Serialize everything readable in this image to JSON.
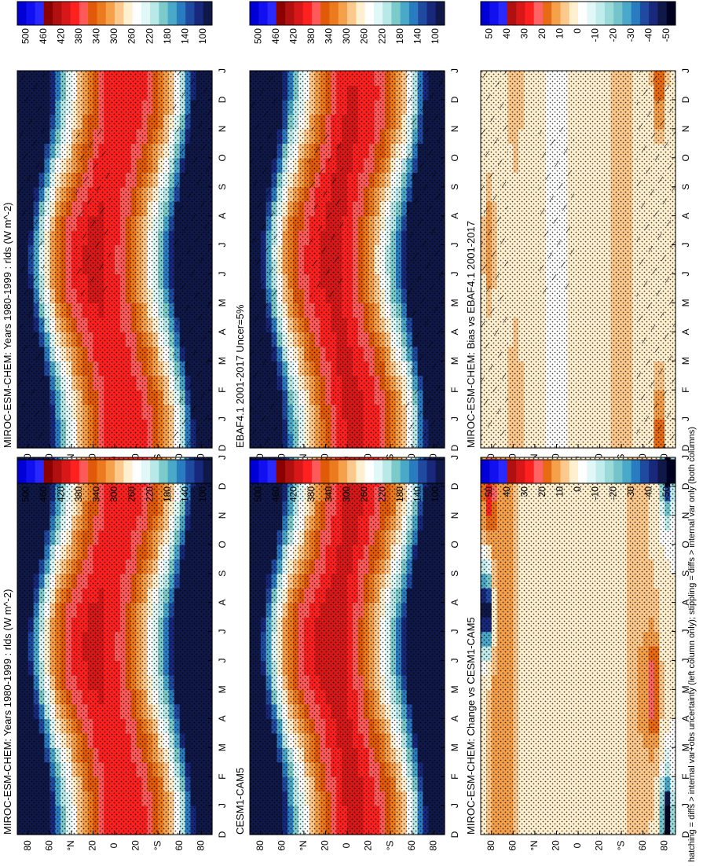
{
  "chart_data": [
    {
      "type": "heatmap",
      "title": "MIROC-ESM-CHEM: Years 1980-1999 : rlds (W m^-2)",
      "row": 0,
      "col": 0,
      "field": "clim_miroc",
      "overlay": [
        "hatch",
        "stipple"
      ],
      "colorbar": "clim"
    },
    {
      "type": "heatmap",
      "title": "EBAF4.1 2001-2017 Uncer=5%",
      "row": 1,
      "col": 0,
      "field": "clim_obs",
      "overlay": [
        "hatch",
        "stipple"
      ],
      "colorbar": "clim"
    },
    {
      "type": "heatmap",
      "title": "MIROC-ESM-CHEM: Bias vs EBAF4.1 2001-2017",
      "row": 2,
      "col": 0,
      "field": "bias",
      "overlay": [
        "hatch",
        "stipple"
      ],
      "colorbar": "diff"
    },
    {
      "type": "heatmap",
      "title": "MIROC-ESM-CHEM: Years 1980-1999 : rlds (W m^-2)",
      "row": 0,
      "col": 1,
      "field": "clim_miroc",
      "overlay": [
        "stipple"
      ],
      "colorbar": "clim"
    },
    {
      "type": "heatmap",
      "title": "CESM1-CAM5",
      "row": 1,
      "col": 1,
      "field": "clim_cesm",
      "overlay": [
        "stipple"
      ],
      "colorbar": "clim"
    },
    {
      "type": "heatmap",
      "title": "MIROC-ESM-CHEM: Change vs CESM1-CAM5",
      "row": 2,
      "col": 1,
      "field": "change",
      "overlay": [
        "stipple"
      ],
      "colorbar": "diff"
    }
  ],
  "axes": {
    "month_labels": [
      "D",
      "J",
      "F",
      "M",
      "A",
      "M",
      "J",
      "J",
      "A",
      "S",
      "O",
      "N",
      "D",
      "J"
    ],
    "lat_labels": [
      "80",
      "60",
      "°N",
      "20",
      "0",
      "20",
      "°S",
      "60",
      "80"
    ],
    "lat_values": [
      80,
      60,
      40,
      20,
      0,
      -20,
      -40,
      -60,
      -80
    ]
  },
  "colorbars": {
    "clim": {
      "labels": [
        "500",
        "460",
        "420",
        "380",
        "340",
        "300",
        "260",
        "220",
        "180",
        "140",
        "100"
      ],
      "colors": [
        "#0000d6",
        "#1010f0",
        "#2828ff",
        "#8b0000",
        "#b01010",
        "#d81818",
        "#ff2020",
        "#ff5a5a",
        "#e05a0a",
        "#ec7a1e",
        "#f5a04a",
        "#fcc88c",
        "#fff0d0",
        "#ffffff",
        "#e0f8f8",
        "#b8e8e8",
        "#7ccaca",
        "#4aa8c8",
        "#2a7cc0",
        "#1f4aa0",
        "#18287a",
        "#101848"
      ]
    },
    "diff": {
      "labels": [
        "50",
        "40",
        "30",
        "20",
        "10",
        "0",
        "-10",
        "-20",
        "-30",
        "-40",
        "-50"
      ],
      "colors": [
        "#0000d6",
        "#1010f0",
        "#2828ff",
        "#b01010",
        "#d81818",
        "#ff2020",
        "#ff6464",
        "#e86a14",
        "#f5a04a",
        "#fcc88c",
        "#fff0d0",
        "#ffffff",
        "#e0f8f8",
        "#c0ecec",
        "#9cdada",
        "#74c4cc",
        "#4aa8c8",
        "#2a7cc0",
        "#1f4aa0",
        "#18287a",
        "#101848",
        "#000020"
      ]
    }
  },
  "footer": "hatching = diffs > internal var+obs uncertainty (left column only); stippling = diffs > internal var only (both columns)"
}
